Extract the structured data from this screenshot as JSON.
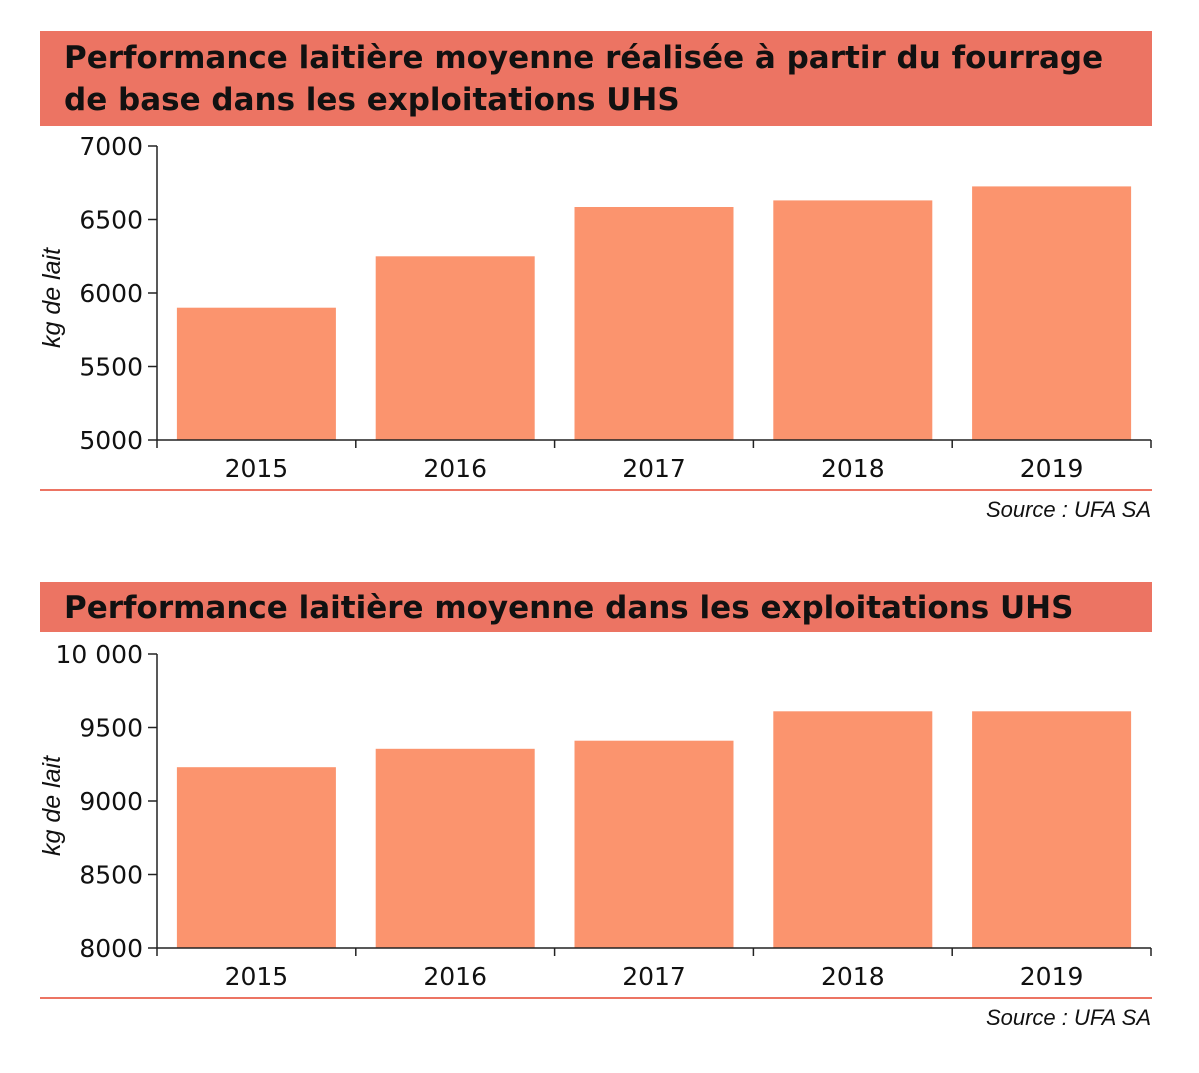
{
  "colors": {
    "title_bg": "#EC7463",
    "bar": "#FB946E",
    "rule": "#EC7463",
    "axis": "#222222",
    "text": "#111111"
  },
  "chart_data": [
    {
      "type": "bar",
      "title_lines": [
        "Performance laitière moyenne réalisée à partir du fourrage",
        "de base dans les exploitations UHS"
      ],
      "categories": [
        "2015",
        "2016",
        "2017",
        "2018",
        "2019"
      ],
      "values": [
        5900,
        6250,
        6585,
        6630,
        6725
      ],
      "ylabel": "kg de lait",
      "xlabel": "",
      "ylim": [
        5000,
        7000
      ],
      "yticks": [
        5000,
        5500,
        6000,
        6500,
        7000
      ],
      "ytick_labels": [
        "5000",
        "5500",
        "6000",
        "6500",
        "7000"
      ],
      "grid": false,
      "source": "Source : UFA SA"
    },
    {
      "type": "bar",
      "title_lines": [
        "Performance laitière moyenne dans les exploitations UHS"
      ],
      "categories": [
        "2015",
        "2016",
        "2017",
        "2018",
        "2019"
      ],
      "values": [
        9230,
        9355,
        9410,
        9610,
        9610
      ],
      "ylabel": "kg de lait",
      "xlabel": "",
      "ylim": [
        8000,
        10000
      ],
      "yticks": [
        8000,
        8500,
        9000,
        9500,
        10000
      ],
      "ytick_labels": [
        "8000",
        "8500",
        "9000",
        "9500",
        "10 000"
      ],
      "grid": false,
      "source": "Source : UFA SA"
    }
  ]
}
